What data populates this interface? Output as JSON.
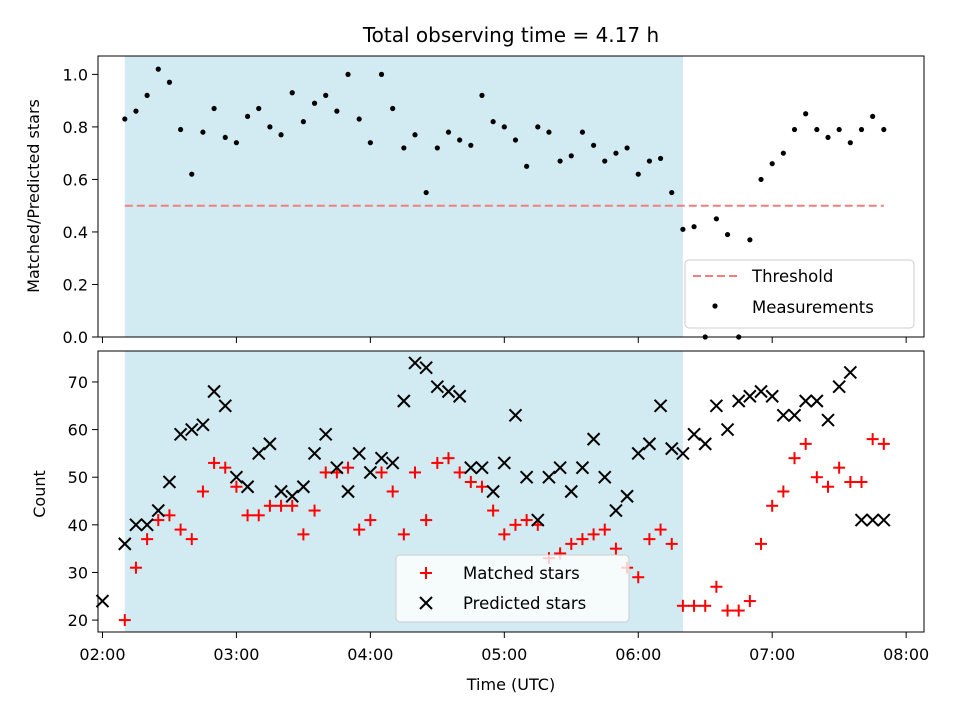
{
  "chart_data": [
    {
      "type": "scatter",
      "panel": "top",
      "title": "Total observing time = 4.17 h",
      "ylabel": "Matched/Predicted stars",
      "xlabel": "",
      "ylim": [
        0.0,
        1.07
      ],
      "yticks": [
        0.0,
        0.2,
        0.4,
        0.6,
        0.8,
        1.0
      ],
      "ytick_labels": [
        "0.0",
        "0.2",
        "0.4",
        "0.6",
        "0.8",
        "1.0"
      ],
      "xlim": [
        "01:58",
        "08:08"
      ],
      "shaded_region": {
        "from": "02:10",
        "to": "06:20",
        "color": "#add8e6"
      },
      "threshold": {
        "name": "Threshold",
        "value": 0.5,
        "from": "02:10",
        "to": "07:50",
        "color": "#f08080"
      },
      "series": [
        {
          "name": "Measurements",
          "color": "#000000",
          "marker": "dot",
          "x": [
            "02:10",
            "02:15",
            "02:20",
            "02:25",
            "02:30",
            "02:35",
            "02:40",
            "02:45",
            "02:50",
            "02:55",
            "03:00",
            "03:05",
            "03:10",
            "03:15",
            "03:20",
            "03:25",
            "03:30",
            "03:35",
            "03:40",
            "03:45",
            "03:50",
            "03:55",
            "04:00",
            "04:05",
            "04:10",
            "04:15",
            "04:20",
            "04:25",
            "04:30",
            "04:35",
            "04:40",
            "04:45",
            "04:50",
            "04:55",
            "05:00",
            "05:05",
            "05:10",
            "05:15",
            "05:20",
            "05:25",
            "05:30",
            "05:35",
            "05:40",
            "05:45",
            "05:50",
            "05:55",
            "06:00",
            "06:05",
            "06:10",
            "06:15",
            "06:20",
            "06:25",
            "06:30",
            "06:35",
            "06:40",
            "06:45",
            "06:50",
            "06:55",
            "07:00",
            "07:05",
            "07:10",
            "07:15",
            "07:20",
            "07:25",
            "07:30",
            "07:35",
            "07:40",
            "07:45",
            "07:50"
          ],
          "y": [
            0.83,
            0.86,
            0.92,
            1.02,
            0.97,
            0.79,
            0.62,
            0.78,
            0.87,
            0.76,
            0.74,
            0.84,
            0.87,
            0.8,
            0.77,
            0.93,
            0.82,
            0.89,
            0.92,
            0.86,
            1.0,
            0.83,
            0.74,
            1.0,
            0.87,
            0.72,
            0.77,
            0.55,
            0.72,
            0.78,
            0.75,
            0.73,
            0.92,
            0.82,
            0.8,
            0.75,
            0.65,
            0.8,
            0.78,
            0.67,
            0.69,
            0.78,
            0.73,
            0.67,
            0.7,
            0.72,
            0.62,
            0.67,
            0.68,
            0.55,
            0.41,
            0.42,
            0.0,
            0.45,
            0.39,
            0.0,
            0.37,
            0.6,
            0.66,
            0.7,
            0.79,
            0.85,
            0.79,
            0.76,
            0.79,
            0.74,
            0.79,
            0.84,
            0.79
          ]
        }
      ],
      "legend": {
        "placement": "lower-right",
        "entries": [
          "Threshold",
          "Measurements"
        ]
      }
    },
    {
      "type": "scatter",
      "panel": "bottom",
      "title": "",
      "ylabel": "Count",
      "xlabel": "Time (UTC)",
      "ylim": [
        17.5,
        76.5
      ],
      "yticks": [
        20,
        30,
        40,
        50,
        60,
        70
      ],
      "ytick_labels": [
        "20",
        "30",
        "40",
        "50",
        "60",
        "70"
      ],
      "xlim": [
        "01:58",
        "08:08"
      ],
      "xticks": [
        "02:00",
        "03:00",
        "04:00",
        "05:00",
        "06:00",
        "07:00",
        "08:00"
      ],
      "xtick_labels": [
        "02:00",
        "03:00",
        "04:00",
        "05:00",
        "06:00",
        "07:00",
        "08:00"
      ],
      "shaded_region": {
        "from": "02:10",
        "to": "06:20",
        "color": "#add8e6"
      },
      "series": [
        {
          "name": "Matched stars",
          "color": "#ff0000",
          "marker": "plus",
          "x": [
            "02:10",
            "02:15",
            "02:20",
            "02:25",
            "02:30",
            "02:35",
            "02:40",
            "02:45",
            "02:50",
            "02:55",
            "03:00",
            "03:05",
            "03:10",
            "03:15",
            "03:20",
            "03:25",
            "03:30",
            "03:35",
            "03:40",
            "03:45",
            "03:50",
            "03:55",
            "04:00",
            "04:05",
            "04:10",
            "04:15",
            "04:20",
            "04:25",
            "04:30",
            "04:35",
            "04:40",
            "04:45",
            "04:50",
            "04:55",
            "05:00",
            "05:05",
            "05:10",
            "05:15",
            "05:20",
            "05:25",
            "05:30",
            "05:35",
            "05:40",
            "05:45",
            "05:50",
            "05:55",
            "06:00",
            "06:05",
            "06:10",
            "06:15",
            "06:20",
            "06:25",
            "06:30",
            "06:35",
            "06:40",
            "06:45",
            "06:50",
            "06:55",
            "07:00",
            "07:05",
            "07:10",
            "07:15",
            "07:20",
            "07:25",
            "07:30",
            "07:35",
            "07:40",
            "07:45",
            "07:50"
          ],
          "y": [
            20,
            31,
            37,
            41,
            42,
            39,
            37,
            47,
            53,
            52,
            48,
            42,
            42,
            44,
            44,
            44,
            38,
            43,
            51,
            51,
            52,
            39,
            41,
            51,
            47,
            38,
            51,
            41,
            53,
            54,
            51,
            49,
            48,
            43,
            38,
            40,
            41,
            40,
            33,
            34,
            36,
            37,
            38,
            39,
            35,
            31,
            29,
            37,
            39,
            36,
            23,
            23,
            23,
            27,
            22,
            22,
            24,
            36,
            44,
            47,
            54,
            57,
            50,
            48,
            52,
            49,
            49,
            58,
            57
          ]
        },
        {
          "name": "Predicted stars",
          "color": "#000000",
          "marker": "x",
          "x": [
            "02:00",
            "02:10",
            "02:15",
            "02:20",
            "02:25",
            "02:30",
            "02:35",
            "02:40",
            "02:45",
            "02:50",
            "02:55",
            "03:00",
            "03:05",
            "03:10",
            "03:15",
            "03:20",
            "03:25",
            "03:30",
            "03:35",
            "03:40",
            "03:45",
            "03:50",
            "03:55",
            "04:00",
            "04:05",
            "04:10",
            "04:15",
            "04:20",
            "04:25",
            "04:30",
            "04:35",
            "04:40",
            "04:45",
            "04:50",
            "04:55",
            "05:00",
            "05:05",
            "05:10",
            "05:15",
            "05:20",
            "05:25",
            "05:30",
            "05:35",
            "05:40",
            "05:45",
            "05:50",
            "05:55",
            "06:00",
            "06:05",
            "06:10",
            "06:15",
            "06:20",
            "06:25",
            "06:30",
            "06:35",
            "06:40",
            "06:45",
            "06:50",
            "06:55",
            "07:00",
            "07:05",
            "07:10",
            "07:15",
            "07:20",
            "07:25",
            "07:30",
            "07:35",
            "07:40",
            "07:45",
            "07:50"
          ],
          "y": [
            24,
            36,
            40,
            40,
            43,
            49,
            59,
            60,
            61,
            68,
            65,
            50,
            48,
            55,
            57,
            47,
            46,
            48,
            55,
            59,
            52,
            47,
            55,
            51,
            54,
            53,
            66,
            74,
            73,
            69,
            68,
            67,
            52,
            52,
            47,
            53,
            63,
            50,
            41,
            50,
            52,
            47,
            52,
            58,
            50,
            43,
            46,
            55,
            57,
            65,
            56,
            55,
            59,
            57,
            65,
            60,
            66,
            67,
            68,
            67,
            63,
            63,
            66,
            66,
            62,
            69,
            72,
            41,
            41,
            41
          ]
        }
      ],
      "legend": {
        "placement": "lower-center",
        "entries": [
          "Matched stars",
          "Predicted stars"
        ]
      }
    }
  ]
}
